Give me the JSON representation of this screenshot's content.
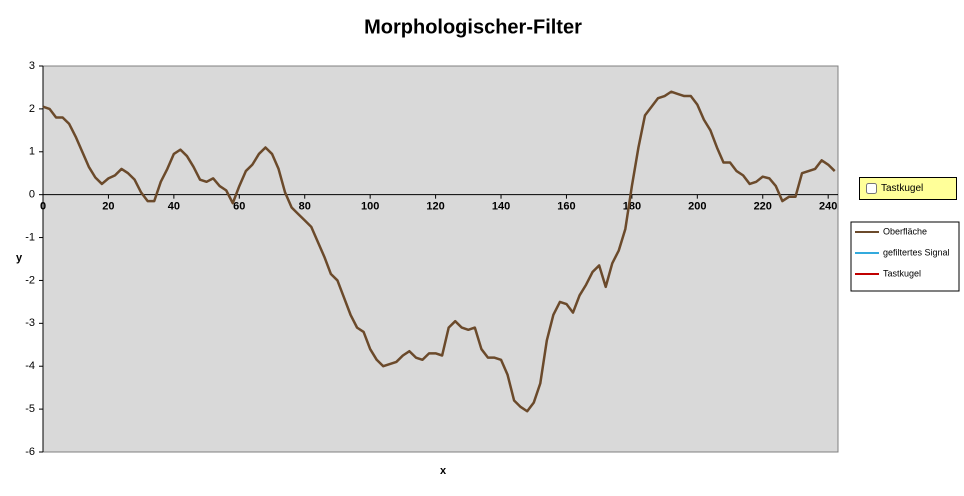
{
  "chart_data": {
    "type": "line",
    "title": "Morphologischer-Filter",
    "x_label": "x",
    "y_label": "y",
    "x": [
      0,
      2,
      4,
      6,
      8,
      10,
      12,
      14,
      16,
      18,
      20,
      22,
      24,
      26,
      28,
      30,
      32,
      34,
      36,
      38,
      40,
      42,
      44,
      46,
      48,
      50,
      52,
      54,
      56,
      58,
      60,
      62,
      64,
      66,
      68,
      70,
      72,
      74,
      76,
      78,
      80,
      82,
      84,
      86,
      88,
      90,
      92,
      94,
      96,
      98,
      100,
      102,
      104,
      106,
      108,
      110,
      112,
      114,
      116,
      118,
      120,
      122,
      124,
      126,
      128,
      130,
      132,
      134,
      136,
      138,
      140,
      142,
      144,
      146,
      148,
      150,
      152,
      154,
      156,
      158,
      160,
      162,
      164,
      166,
      168,
      170,
      172,
      174,
      176,
      178,
      180,
      182,
      184,
      186,
      188,
      190,
      192,
      194,
      196,
      198,
      200,
      202,
      204,
      206,
      208,
      210,
      212,
      214,
      216,
      218,
      220,
      222,
      224,
      226,
      228,
      230,
      232,
      234,
      236,
      238,
      240,
      242
    ],
    "series": [
      {
        "name": "Oberfläche",
        "color": "#6b4a2b",
        "values": [
          2.05,
          2.0,
          1.8,
          1.8,
          1.65,
          1.35,
          1.0,
          0.65,
          0.4,
          0.25,
          0.38,
          0.45,
          0.6,
          0.5,
          0.35,
          0.05,
          -0.15,
          -0.15,
          0.3,
          0.6,
          0.95,
          1.05,
          0.9,
          0.65,
          0.35,
          0.3,
          0.38,
          0.2,
          0.1,
          -0.2,
          0.2,
          0.55,
          0.7,
          0.95,
          1.1,
          0.95,
          0.6,
          0.05,
          -0.3,
          -0.45,
          -0.6,
          -0.75,
          -1.1,
          -1.45,
          -1.85,
          -2.0,
          -2.4,
          -2.8,
          -3.1,
          -3.2,
          -3.6,
          -3.85,
          -4.0,
          -3.95,
          -3.9,
          -3.75,
          -3.65,
          -3.8,
          -3.85,
          -3.7,
          -3.7,
          -3.75,
          -3.1,
          -2.95,
          -3.1,
          -3.15,
          -3.1,
          -3.6,
          -3.8,
          -3.8,
          -3.85,
          -4.2,
          -4.8,
          -4.95,
          -5.05,
          -4.85,
          -4.4,
          -3.4,
          -2.8,
          -2.5,
          -2.55,
          -2.75,
          -2.35,
          -2.1,
          -1.8,
          -1.65,
          -2.15,
          -1.6,
          -1.3,
          -0.8,
          0.2,
          1.1,
          1.85,
          2.05,
          2.25,
          2.3,
          2.4,
          2.35,
          2.3,
          2.3,
          2.1,
          1.75,
          1.5,
          1.1,
          0.75,
          0.75,
          0.55,
          0.45,
          0.25,
          0.3,
          0.42,
          0.38,
          0.2,
          -0.15,
          -0.05,
          -0.05,
          0.5,
          0.55,
          0.6,
          0.8,
          0.7,
          0.55
        ]
      },
      {
        "name": "gefiltertes Signal",
        "color": "#33aadd"
      },
      {
        "name": "Tastkugel",
        "color": "#c00000"
      }
    ],
    "xlim": [
      0,
      243
    ],
    "ylim": [
      -6,
      3
    ],
    "xticks": [
      0,
      20,
      40,
      60,
      80,
      100,
      120,
      140,
      160,
      180,
      200,
      220,
      240
    ],
    "yticks": [
      -6,
      -5,
      -4,
      -3,
      -2,
      -1,
      0,
      1,
      2,
      3
    ],
    "plot_background": "#d9d9d9"
  },
  "controls": {
    "checkbox": {
      "label": "Tastkugel",
      "checked": false
    }
  }
}
